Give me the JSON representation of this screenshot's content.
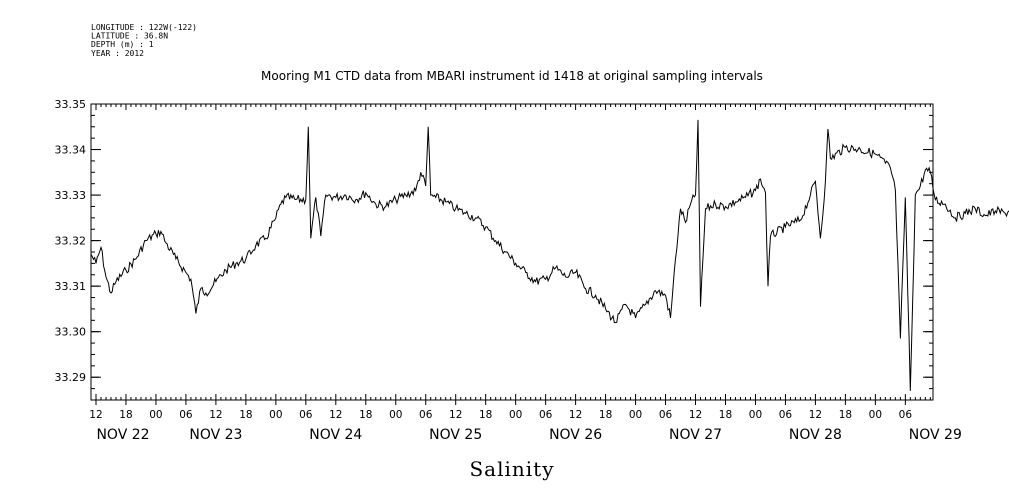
{
  "header": {
    "lines": [
      "LONGITUDE : 122W(-122)",
      "LATITUDE : 36.8N",
      "DEPTH (m) : 1",
      "YEAR : 2012"
    ]
  },
  "chart_data": {
    "type": "line",
    "title": "Mooring M1 CTD data from MBARI instrument id 1418 at original sampling intervals",
    "xlabel": "Salinity",
    "ylabel": "",
    "ylim": [
      33.285,
      33.35
    ],
    "xlim_hours_note": "",
    "x_hour_ticks": [
      "12",
      "18",
      "00",
      "06",
      "12",
      "18",
      "00",
      "06",
      "12",
      "18",
      "00",
      "06",
      "12",
      "18",
      "00",
      "06",
      "12",
      "18",
      "00",
      "06",
      "12",
      "18",
      "00",
      "06",
      "12",
      "18",
      "00",
      "06"
    ],
    "x_day_ticks": [
      "NOV 22",
      "NOV 23",
      "NOV 24",
      "NOV 25",
      "NOV 26",
      "NOV 27",
      "NOV 28",
      "NOV 29"
    ],
    "y_ticks": [
      "33.29",
      "33.30",
      "33.31",
      "33.32",
      "33.33",
      "33.34",
      "33.35"
    ],
    "y_tick_values": [
      33.29,
      33.3,
      33.31,
      33.32,
      33.33,
      33.34,
      33.35
    ],
    "series": [
      {
        "points": [
          [
            "NOV 22 11:00",
            33.317
          ],
          [
            "NOV 22 12:00",
            33.315
          ],
          [
            "NOV 22 13:00",
            33.3185
          ],
          [
            "NOV 22 14:00",
            33.312
          ],
          [
            "NOV 22 15:00",
            33.3085
          ],
          [
            "NOV 22 16:00",
            33.311
          ],
          [
            "NOV 22 18:00",
            33.3135
          ],
          [
            "NOV 22 20:00",
            33.316
          ],
          [
            "NOV 22 22:00",
            33.32
          ],
          [
            "NOV 23 00:00",
            33.3215
          ],
          [
            "NOV 23 01:00",
            33.322
          ],
          [
            "NOV 23 02:00",
            33.3195
          ],
          [
            "NOV 23 04:00",
            33.316
          ],
          [
            "NOV 23 06:00",
            33.313
          ],
          [
            "NOV 23 07:00",
            33.3115
          ],
          [
            "NOV 23 08:00",
            33.304
          ],
          [
            "NOV 23 09:00",
            33.3095
          ],
          [
            "NOV 23 10:00",
            33.3085
          ],
          [
            "NOV 23 12:00",
            33.311
          ],
          [
            "NOV 23 14:00",
            33.3135
          ],
          [
            "NOV 23 16:00",
            33.315
          ],
          [
            "NOV 23 18:00",
            33.316
          ],
          [
            "NOV 23 20:00",
            33.319
          ],
          [
            "NOV 23 22:00",
            33.3205
          ],
          [
            "NOV 24 00:00",
            33.325
          ],
          [
            "NOV 24 01:00",
            33.328
          ],
          [
            "NOV 24 02:00",
            33.3295
          ],
          [
            "NOV 24 04:00",
            33.329
          ],
          [
            "NOV 24 06:00",
            33.329
          ],
          [
            "NOV 24 06:30",
            33.345
          ],
          [
            "NOV 24 07:00",
            33.3205
          ],
          [
            "NOV 24 08:00",
            33.3295
          ],
          [
            "NOV 24 09:00",
            33.321
          ],
          [
            "NOV 24 10:00",
            33.33
          ],
          [
            "NOV 24 12:00",
            33.3295
          ],
          [
            "NOV 24 14:00",
            33.33
          ],
          [
            "NOV 24 16:00",
            33.329
          ],
          [
            "NOV 24 18:00",
            33.3305
          ],
          [
            "NOV 24 20:00",
            33.328
          ],
          [
            "NOV 24 22:00",
            33.3275
          ],
          [
            "NOV 25 00:00",
            33.329
          ],
          [
            "NOV 25 02:00",
            33.33
          ],
          [
            "NOV 25 04:00",
            33.331
          ],
          [
            "NOV 25 05:00",
            33.335
          ],
          [
            "NOV 25 06:00",
            33.332
          ],
          [
            "NOV 25 06:30",
            33.345
          ],
          [
            "NOV 25 07:00",
            33.33
          ],
          [
            "NOV 25 08:00",
            33.3295
          ],
          [
            "NOV 25 10:00",
            33.3285
          ],
          [
            "NOV 25 12:00",
            33.327
          ],
          [
            "NOV 25 14:00",
            33.326
          ],
          [
            "NOV 25 16:00",
            33.325
          ],
          [
            "NOV 25 18:00",
            33.323
          ],
          [
            "NOV 25 20:00",
            33.32
          ],
          [
            "NOV 25 22:00",
            33.3175
          ],
          [
            "NOV 26 00:00",
            33.315
          ],
          [
            "NOV 26 02:00",
            33.313
          ],
          [
            "NOV 26 04:00",
            33.311
          ],
          [
            "NOV 26 06:00",
            33.3115
          ],
          [
            "NOV 26 08:00",
            33.314
          ],
          [
            "NOV 26 10:00",
            33.312
          ],
          [
            "NOV 26 12:00",
            33.313
          ],
          [
            "NOV 26 14:00",
            33.3095
          ],
          [
            "NOV 26 16:00",
            33.308
          ],
          [
            "NOV 26 18:00",
            33.305
          ],
          [
            "NOV 26 20:00",
            33.302
          ],
          [
            "NOV 26 22:00",
            33.306
          ],
          [
            "NOV 27 00:00",
            33.303
          ],
          [
            "NOV 27 02:00",
            33.306
          ],
          [
            "NOV 27 04:00",
            33.309
          ],
          [
            "NOV 27 06:00",
            33.308
          ],
          [
            "NOV 27 07:00",
            33.303
          ],
          [
            "NOV 27 08:00",
            33.316
          ],
          [
            "NOV 27 09:00",
            33.327
          ],
          [
            "NOV 27 10:00",
            33.324
          ],
          [
            "NOV 27 11:00",
            33.328
          ],
          [
            "NOV 27 12:00",
            33.33
          ],
          [
            "NOV 27 12:30",
            33.3465
          ],
          [
            "NOV 27 13:00",
            33.3055
          ],
          [
            "NOV 27 14:00",
            33.327
          ],
          [
            "NOV 27 16:00",
            33.328
          ],
          [
            "NOV 27 18:00",
            33.3275
          ],
          [
            "NOV 27 20:00",
            33.3285
          ],
          [
            "NOV 27 22:00",
            33.3295
          ],
          [
            "NOV 28 00:00",
            33.331
          ],
          [
            "NOV 28 01:00",
            33.3335
          ],
          [
            "NOV 28 02:00",
            33.3305
          ],
          [
            "NOV 28 02:30",
            33.31
          ],
          [
            "NOV 28 03:00",
            33.321
          ],
          [
            "NOV 28 06:00",
            33.323
          ],
          [
            "NOV 28 09:00",
            33.3245
          ],
          [
            "NOV 28 11:00",
            33.33
          ],
          [
            "NOV 28 12:00",
            33.333
          ],
          [
            "NOV 28 13:00",
            33.3205
          ],
          [
            "NOV 28 14:00",
            33.333
          ],
          [
            "NOV 28 14:30",
            33.3445
          ],
          [
            "NOV 28 15:00",
            33.338
          ],
          [
            "NOV 28 18:00",
            33.3405
          ],
          [
            "NOV 28 21:00",
            33.34
          ],
          [
            "NOV 29 00:00",
            33.339
          ],
          [
            "NOV 29 02:00",
            33.337
          ],
          [
            "NOV 29 03:00",
            33.336
          ],
          [
            "NOV 29 04:00",
            33.331
          ],
          [
            "NOV 29 05:00",
            33.2985
          ],
          [
            "NOV 29 06:00",
            33.3295
          ],
          [
            "NOV 29 07:00",
            33.287
          ],
          [
            "NOV 29 08:00",
            33.33
          ],
          [
            "NOV 29 09:00",
            33.332
          ],
          [
            "NOV 29 10:00",
            33.3355
          ],
          [
            "NOV 29 11:00",
            33.335
          ],
          [
            "NOV 29 12:00",
            33.329
          ],
          [
            "NOV 29 14:00",
            33.328
          ],
          [
            "NOV 29 16:00",
            33.325
          ],
          [
            "NOV 29 18:00",
            33.326
          ],
          [
            "NOV 29 20:00",
            33.327
          ],
          [
            "NOV 29 22:00",
            33.3255
          ],
          [
            "NOV 30 00:00",
            33.3265
          ],
          [
            "NOV 30 02:00",
            33.326
          ],
          [
            "NOV 30 04:00",
            33.3275
          ],
          [
            "NOV 30 05:00",
            33.33
          ],
          [
            "NOV 30 06:00",
            33.326
          ],
          [
            "NOV 30 07:00",
            33.3185
          ]
        ]
      }
    ],
    "grid": false,
    "legend": "none"
  }
}
